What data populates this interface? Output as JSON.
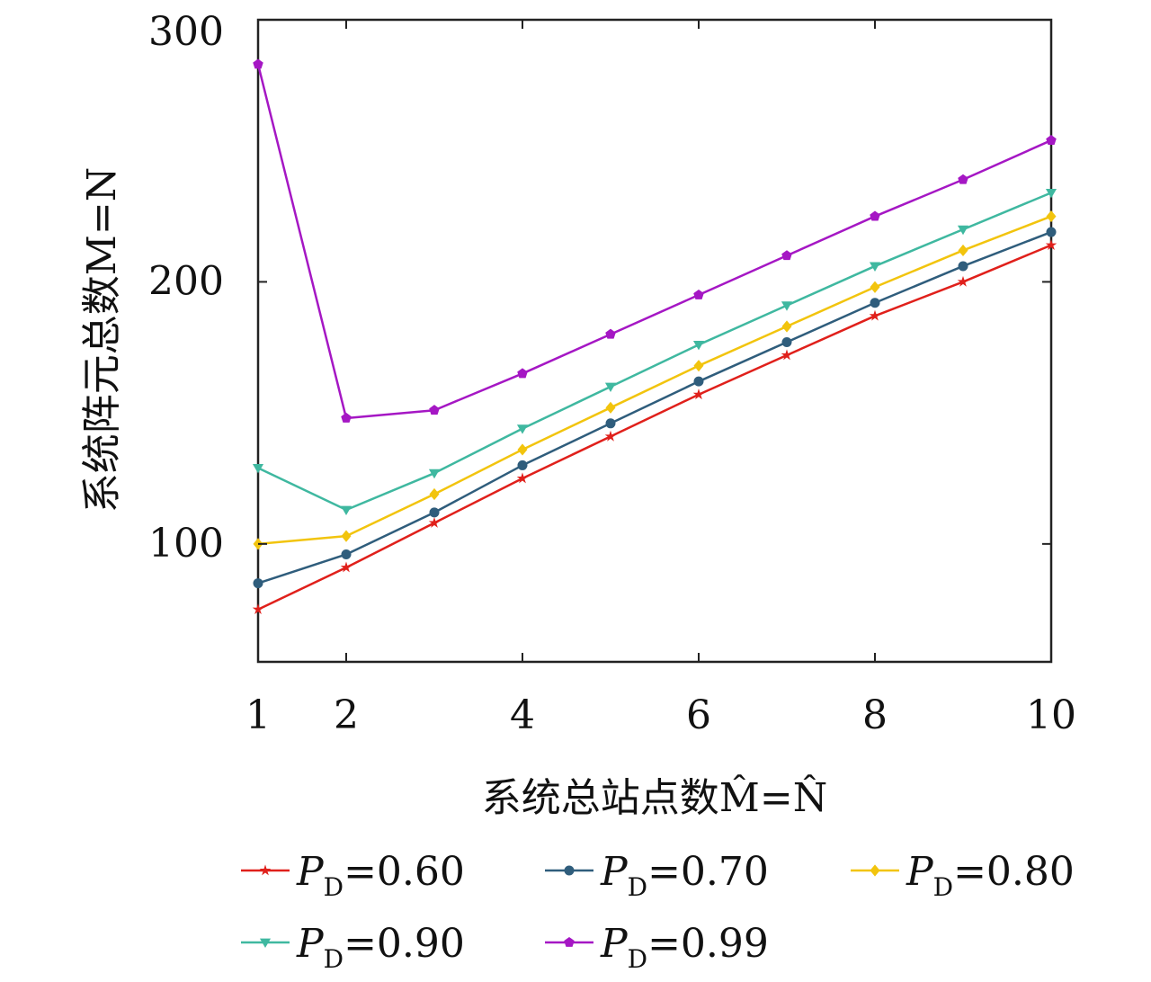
{
  "chart_data": {
    "type": "line",
    "xlabel": "系统总站点数M̂=N̂",
    "ylabel": "系统阵元总数M=N",
    "x": [
      1,
      2,
      3,
      4,
      5,
      6,
      7,
      8,
      9,
      10
    ],
    "xticks": [
      1,
      2,
      4,
      6,
      8,
      10
    ],
    "xtick_labels": [
      "1",
      "2",
      "4",
      "6",
      "8",
      "10"
    ],
    "xlim": [
      1,
      10
    ],
    "yticks": [
      100,
      200,
      300
    ],
    "ytick_labels": [
      "100",
      "200",
      "300"
    ],
    "ylim": [
      55,
      300
    ],
    "grid": false,
    "legend_position": "bottom",
    "series": [
      {
        "name": "P_D=0.60",
        "legend": {
          "prefix": "P",
          "sub": "D",
          "suffix": "=0.60"
        },
        "color": "#e0201b",
        "marker": "star",
        "values": [
          75,
          91,
          108,
          125,
          141,
          157,
          172,
          187,
          200,
          214
        ]
      },
      {
        "name": "P_D=0.70",
        "legend": {
          "prefix": "P",
          "sub": "D",
          "suffix": "=0.70"
        },
        "color": "#2f5d7c",
        "marker": "circle",
        "values": [
          85,
          96,
          112,
          130,
          146,
          162,
          177,
          192,
          206,
          219
        ]
      },
      {
        "name": "P_D=0.80",
        "legend": {
          "prefix": "P",
          "sub": "D",
          "suffix": "=0.80"
        },
        "color": "#f2c40d",
        "marker": "diamond",
        "values": [
          100,
          103,
          119,
          136,
          152,
          168,
          183,
          198,
          212,
          225
        ]
      },
      {
        "name": "P_D=0.90",
        "legend": {
          "prefix": "P",
          "sub": "D",
          "suffix": "=0.90"
        },
        "color": "#3fb8a0",
        "marker": "triangle-down",
        "values": [
          129,
          113,
          127,
          144,
          160,
          176,
          191,
          206,
          220,
          234
        ]
      },
      {
        "name": "P_D=0.99",
        "legend": {
          "prefix": "P",
          "sub": "D",
          "suffix": "=0.99"
        },
        "color": "#a517c4",
        "marker": "pentagon",
        "values": [
          283,
          148,
          151,
          165,
          180,
          195,
          210,
          225,
          239,
          254
        ]
      }
    ]
  }
}
